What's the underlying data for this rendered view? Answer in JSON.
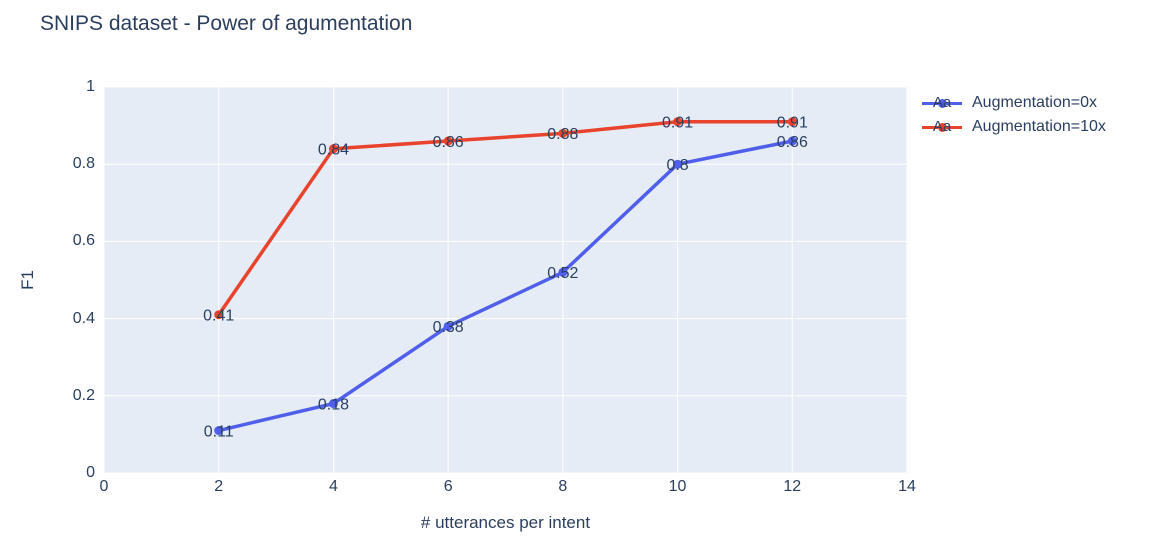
{
  "chart_data": {
    "type": "line",
    "mode": "lines+markers+text",
    "title": "SNIPS dataset - Power of agumentation",
    "xlabel": "# utterances per intent",
    "ylabel": "F1",
    "x": [
      2,
      4,
      6,
      8,
      10,
      12
    ],
    "series": [
      {
        "name": "Augmentation=0x",
        "color": "#505feb",
        "values": [
          0.11,
          0.18,
          0.38,
          0.52,
          0.8,
          0.86
        ],
        "point_labels": [
          "0.11",
          "0.18",
          "0.38",
          "0.52",
          "0.8",
          "0.86"
        ]
      },
      {
        "name": "Augmentation=10x",
        "color": "#e9432d",
        "values": [
          0.41,
          0.84,
          0.86,
          0.88,
          0.91,
          0.91
        ],
        "point_labels": [
          "0.41",
          "0.84",
          "0.86",
          "0.88",
          "0.91",
          "0.91"
        ]
      }
    ],
    "xlim": [
      0,
      14
    ],
    "ylim": [
      0,
      1
    ],
    "xticks": [
      0,
      2,
      4,
      6,
      8,
      10,
      12,
      14
    ],
    "xtick_labels": [
      "0",
      "2",
      "4",
      "6",
      "8",
      "10",
      "12",
      "14"
    ],
    "yticks": [
      0,
      0.2,
      0.4,
      0.6,
      0.8,
      1
    ],
    "ytick_labels": [
      "0",
      "0.2",
      "0.4",
      "0.6",
      "0.8",
      "1"
    ],
    "grid": true,
    "legend": {
      "position": "outside-top-right",
      "marker_text": "Aa",
      "entries": [
        "Augmentation=0x",
        "Augmentation=10x"
      ]
    },
    "colors": {
      "plot_background": "#e5ecf6",
      "gridline": "#ffffff",
      "text": "#2a3f5f"
    }
  }
}
